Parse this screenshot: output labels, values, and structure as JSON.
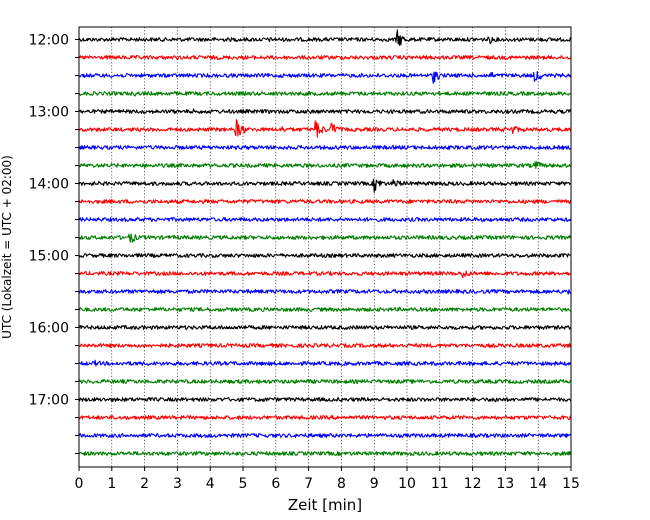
{
  "chart_data": {
    "type": "line",
    "title": "",
    "xlabel": "Zeit  [min]",
    "ylabel": "UTC (Lokalzeit = UTC + 02:00)",
    "xlim": [
      0,
      15
    ],
    "x_ticks": [
      "0",
      "1",
      "2",
      "3",
      "4",
      "5",
      "6",
      "7",
      "8",
      "9",
      "10",
      "11",
      "12",
      "13",
      "14",
      "15"
    ],
    "y_tick_labels": [
      "12:00",
      "13:00",
      "14:00",
      "15:00",
      "16:00",
      "17:00"
    ],
    "trace_interval_minutes": 15,
    "grid": "vertical dotted lines at each minute",
    "colors_cycle": [
      "#000000",
      "#ff0000",
      "#0000ff",
      "#008000"
    ],
    "series": [
      {
        "start": "12:00",
        "color": "#000000",
        "events": [
          {
            "t": 9.7,
            "amp": 10
          },
          {
            "t": 12.5,
            "amp": 5
          },
          {
            "t": 5.8,
            "amp": 2.5
          }
        ]
      },
      {
        "start": "12:15",
        "color": "#ff0000",
        "events": [
          {
            "t": 3.9,
            "amp": 2.5
          },
          {
            "t": 10.2,
            "amp": 2
          }
        ]
      },
      {
        "start": "12:30",
        "color": "#0000ff",
        "events": [
          {
            "t": 10.8,
            "amp": 8
          },
          {
            "t": 12.5,
            "amp": 5
          },
          {
            "t": 13.9,
            "amp": 8
          }
        ]
      },
      {
        "start": "12:45",
        "color": "#008000",
        "events": [
          {
            "t": 1.7,
            "amp": 3
          }
        ]
      },
      {
        "start": "13:00",
        "color": "#000000",
        "events": [
          {
            "t": 3.5,
            "amp": 3
          }
        ]
      },
      {
        "start": "13:15",
        "color": "#ff0000",
        "events": [
          {
            "t": 4.8,
            "amp": 11
          },
          {
            "t": 6.2,
            "amp": 4
          },
          {
            "t": 7.2,
            "amp": 11
          },
          {
            "t": 7.7,
            "amp": 8
          },
          {
            "t": 13.2,
            "amp": 6
          }
        ]
      },
      {
        "start": "13:30",
        "color": "#0000ff",
        "events": [
          {
            "t": 3.2,
            "amp": 2
          },
          {
            "t": 12.3,
            "amp": 2
          }
        ]
      },
      {
        "start": "13:45",
        "color": "#008000",
        "events": [
          {
            "t": 13.9,
            "amp": 6
          }
        ]
      },
      {
        "start": "14:00",
        "color": "#000000",
        "events": [
          {
            "t": 9.0,
            "amp": 9
          },
          {
            "t": 9.6,
            "amp": 6
          },
          {
            "t": 11.0,
            "amp": 3
          }
        ]
      },
      {
        "start": "14:15",
        "color": "#ff0000",
        "events": []
      },
      {
        "start": "14:30",
        "color": "#0000ff",
        "events": [
          {
            "t": 5.3,
            "amp": 2
          }
        ]
      },
      {
        "start": "14:45",
        "color": "#008000",
        "events": [
          {
            "t": 1.55,
            "amp": 7
          }
        ]
      },
      {
        "start": "15:00",
        "color": "#000000",
        "events": []
      },
      {
        "start": "15:15",
        "color": "#ff0000",
        "events": [
          {
            "t": 11.7,
            "amp": 6
          }
        ]
      },
      {
        "start": "15:30",
        "color": "#0000ff",
        "events": [
          {
            "t": 14.9,
            "amp": 4
          }
        ]
      },
      {
        "start": "15:45",
        "color": "#008000",
        "events": [
          {
            "t": 3.8,
            "amp": 2.5
          }
        ]
      },
      {
        "start": "16:00",
        "color": "#000000",
        "events": [
          {
            "t": 4.9,
            "amp": 4
          },
          {
            "t": 3.8,
            "amp": 2
          }
        ]
      },
      {
        "start": "16:15",
        "color": "#ff0000",
        "events": [
          {
            "t": 7.5,
            "amp": 3
          }
        ]
      },
      {
        "start": "16:30",
        "color": "#0000ff",
        "events": [
          {
            "t": 0.5,
            "amp": 4
          }
        ]
      },
      {
        "start": "16:45",
        "color": "#008000",
        "events": [
          {
            "t": 5.5,
            "amp": 3
          }
        ]
      },
      {
        "start": "17:00",
        "color": "#000000",
        "events": [
          {
            "t": 5.6,
            "amp": 3
          },
          {
            "t": 12.7,
            "amp": 4
          }
        ]
      },
      {
        "start": "17:15",
        "color": "#ff0000",
        "events": []
      },
      {
        "start": "17:30",
        "color": "#0000ff",
        "events": [
          {
            "t": 1.4,
            "amp": 2
          }
        ]
      },
      {
        "start": "17:45",
        "color": "#008000",
        "events": []
      }
    ]
  }
}
